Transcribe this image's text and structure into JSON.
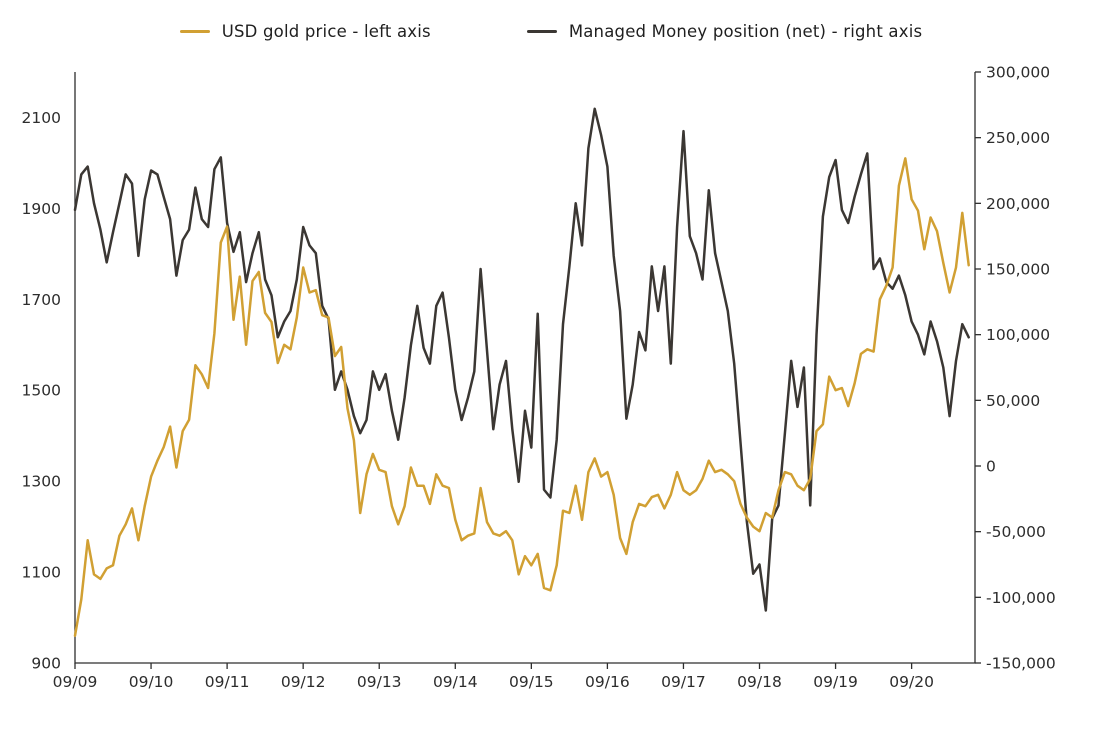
{
  "chart_data": {
    "type": "line",
    "title": "",
    "x_start_label": "09/09",
    "x_axis": {
      "ticks": [
        {
          "m": 0,
          "label": "09/09"
        },
        {
          "m": 12,
          "label": "09/10"
        },
        {
          "m": 24,
          "label": "09/11"
        },
        {
          "m": 36,
          "label": "09/12"
        },
        {
          "m": 48,
          "label": "09/13"
        },
        {
          "m": 60,
          "label": "09/14"
        },
        {
          "m": 72,
          "label": "09/15"
        },
        {
          "m": 84,
          "label": "09/16"
        },
        {
          "m": 96,
          "label": "09/17"
        },
        {
          "m": 108,
          "label": "09/18"
        },
        {
          "m": 120,
          "label": "09/19"
        },
        {
          "m": 132,
          "label": "09/20"
        }
      ]
    },
    "left_axis": {
      "min": 900,
      "max": 2200,
      "ticks": [
        {
          "v": 900,
          "label": "900"
        },
        {
          "v": 1100,
          "label": "1100"
        },
        {
          "v": 1300,
          "label": "1300"
        },
        {
          "v": 1500,
          "label": "1500"
        },
        {
          "v": 1700,
          "label": "1700"
        },
        {
          "v": 1900,
          "label": "1900"
        },
        {
          "v": 2100,
          "label": "2100"
        }
      ]
    },
    "right_axis": {
      "min": -150000,
      "max": 300000,
      "ticks": [
        {
          "v": 300000,
          "label": "300,000"
        },
        {
          "v": 250000,
          "label": "250,000"
        },
        {
          "v": 200000,
          "label": "200,000"
        },
        {
          "v": 150000,
          "label": "150,000"
        },
        {
          "v": 100000,
          "label": "100,000"
        },
        {
          "v": 50000,
          "label": "50,000"
        },
        {
          "v": 0,
          "label": "0"
        },
        {
          "v": -50000,
          "label": "-50,000"
        },
        {
          "v": -100000,
          "label": "-100,000"
        },
        {
          "v": -150000,
          "label": "-150,000"
        }
      ]
    },
    "layout": {
      "x_months_total": 142,
      "grid": false,
      "legend_position": "top",
      "axis_color": "#2e2e2e"
    },
    "series": [
      {
        "name": "managed-money-net",
        "legend_label": "Managed Money position (net) - right axis",
        "color": "#3B3733",
        "axis": "right",
        "interval": "monthly",
        "values": [
          195000,
          222000,
          228000,
          200000,
          180000,
          155000,
          178000,
          200000,
          222000,
          215000,
          160000,
          203000,
          225000,
          222000,
          205000,
          188000,
          145000,
          172000,
          180000,
          212000,
          188000,
          182000,
          226000,
          235000,
          185000,
          163000,
          178000,
          140000,
          162000,
          178000,
          142000,
          130000,
          98000,
          110000,
          118000,
          142000,
          182000,
          168000,
          162000,
          122000,
          112000,
          58000,
          72000,
          58000,
          38000,
          25000,
          35000,
          72000,
          58000,
          70000,
          42000,
          20000,
          52000,
          92000,
          122000,
          90000,
          78000,
          122000,
          132000,
          98000,
          58000,
          35000,
          52000,
          72000,
          150000,
          88000,
          28000,
          62000,
          80000,
          28000,
          -12000,
          42000,
          14000,
          116000,
          -18000,
          -24000,
          20000,
          108000,
          152000,
          200000,
          168000,
          242000,
          272000,
          252000,
          228000,
          160000,
          118000,
          36000,
          62000,
          102000,
          88000,
          152000,
          118000,
          152000,
          78000,
          182000,
          255000,
          175000,
          162000,
          142000,
          210000,
          162000,
          140000,
          118000,
          78000,
          18000,
          -42000,
          -82000,
          -75000,
          -110000,
          -40000,
          -30000,
          25000,
          80000,
          45000,
          75000,
          -30000,
          100000,
          190000,
          220000,
          233000,
          195000,
          185000,
          205000,
          222000,
          238000,
          150000,
          158000,
          140000,
          135000,
          145000,
          130000,
          110000,
          100000,
          85000,
          110000,
          95000,
          75000,
          38000,
          80000,
          108000,
          98000
        ]
      },
      {
        "name": "usd-gold-price",
        "legend_label": "USD gold price - left axis",
        "color": "#D1A033",
        "axis": "left",
        "interval": "monthly",
        "values": [
          960,
          1040,
          1170,
          1095,
          1085,
          1108,
          1115,
          1180,
          1205,
          1240,
          1170,
          1245,
          1310,
          1345,
          1375,
          1420,
          1330,
          1410,
          1435,
          1555,
          1535,
          1505,
          1625,
          1825,
          1860,
          1655,
          1750,
          1600,
          1740,
          1760,
          1670,
          1650,
          1560,
          1600,
          1590,
          1660,
          1770,
          1715,
          1720,
          1665,
          1660,
          1575,
          1595,
          1460,
          1390,
          1230,
          1315,
          1360,
          1325,
          1320,
          1245,
          1205,
          1245,
          1330,
          1290,
          1290,
          1250,
          1315,
          1290,
          1285,
          1215,
          1170,
          1180,
          1185,
          1285,
          1210,
          1185,
          1180,
          1190,
          1170,
          1095,
          1135,
          1115,
          1140,
          1065,
          1060,
          1115,
          1235,
          1230,
          1290,
          1215,
          1320,
          1350,
          1310,
          1320,
          1270,
          1175,
          1140,
          1210,
          1250,
          1245,
          1265,
          1270,
          1240,
          1270,
          1320,
          1280,
          1270,
          1280,
          1305,
          1345,
          1320,
          1325,
          1315,
          1300,
          1250,
          1220,
          1200,
          1190,
          1230,
          1220,
          1280,
          1320,
          1315,
          1290,
          1280,
          1305,
          1410,
          1425,
          1530,
          1500,
          1505,
          1465,
          1515,
          1580,
          1590,
          1585,
          1700,
          1730,
          1770,
          1950,
          2010,
          1920,
          1895,
          1810,
          1880,
          1850,
          1780,
          1715,
          1770,
          1890,
          1775
        ]
      }
    ],
    "legend": {
      "gold_label": "USD gold price - left axis",
      "managed_money_label": "Managed Money position (net) - right axis"
    }
  }
}
